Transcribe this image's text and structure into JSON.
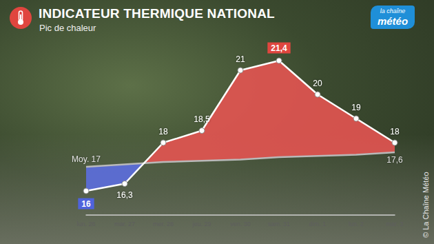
{
  "chart_data": {
    "type": "line",
    "title": "INDICATEUR THERMIQUE NATIONAL",
    "subtitle": "Pic de chaleur",
    "categories": [
      "lun. 26",
      "mar. 27",
      "mer. 28",
      "jeu. 29",
      "ven. 30",
      "sam. 31",
      "dim. 1",
      "lun. 2",
      "mar. 3"
    ],
    "series": [
      {
        "values": [
          16,
          16.3,
          18,
          18.5,
          21,
          21.4,
          20,
          19,
          18
        ],
        "value_labels": [
          "16",
          "16,3",
          "18",
          "18,5",
          "21",
          "21,4",
          "20",
          "19",
          "18"
        ],
        "color": "#ffffff",
        "marker": "circle"
      },
      {
        "values": [
          17,
          17.1,
          17.2,
          17.25,
          17.3,
          17.4,
          17.45,
          17.5,
          17.6
        ],
        "value_labels": [
          "Moy. 17",
          null,
          null,
          null,
          null,
          null,
          null,
          null,
          "17,6"
        ],
        "color": "#b9b9b9",
        "marker": "none"
      }
    ],
    "ylim": [
      15,
      22
    ],
    "yticks": [
      15,
      16,
      17,
      18,
      19,
      20,
      21,
      22
    ],
    "grid": false,
    "tick_labels": "x",
    "data_labels": true
  },
  "logo": [
    "la chaîne",
    "météo"
  ],
  "credit": "© La Chaîne Météo"
}
